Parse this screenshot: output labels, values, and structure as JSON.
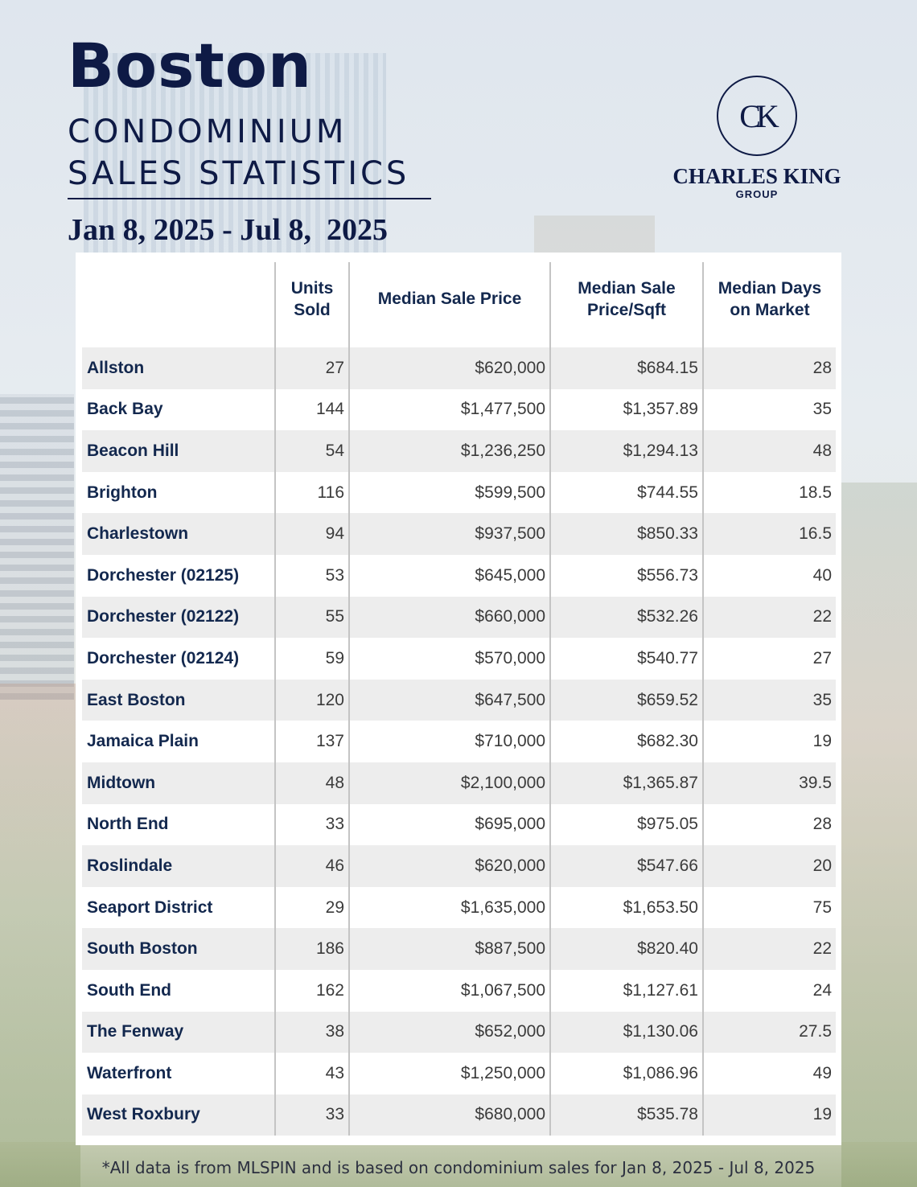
{
  "header": {
    "title": "Boston",
    "subtitle_line1": "CONDOMINIUM",
    "subtitle_line2": "SALES STATISTICS",
    "date_range": "Jan 8, 2025 - Jul 8,  2025"
  },
  "logo": {
    "mark": "CK",
    "name": "CHARLES KING",
    "sub": "GROUP"
  },
  "table": {
    "headers": {
      "units": "Units\nSold",
      "price": "Median Sale Price",
      "sqft": "Median Sale\nPrice/Sqft",
      "days": "Median Days\non Market"
    },
    "rows": [
      {
        "area": "Allston",
        "units": "27",
        "price": "$620,000",
        "sqft": "$684.15",
        "days": "28"
      },
      {
        "area": "Back Bay",
        "units": "144",
        "price": "$1,477,500",
        "sqft": "$1,357.89",
        "days": "35"
      },
      {
        "area": "Beacon Hill",
        "units": "54",
        "price": "$1,236,250",
        "sqft": "$1,294.13",
        "days": "48"
      },
      {
        "area": "Brighton",
        "units": "116",
        "price": "$599,500",
        "sqft": "$744.55",
        "days": "18.5"
      },
      {
        "area": "Charlestown",
        "units": "94",
        "price": "$937,500",
        "sqft": "$850.33",
        "days": "16.5"
      },
      {
        "area": "Dorchester (02125)",
        "units": "53",
        "price": "$645,000",
        "sqft": "$556.73",
        "days": "40"
      },
      {
        "area": "Dorchester (02122)",
        "units": "55",
        "price": "$660,000",
        "sqft": "$532.26",
        "days": "22"
      },
      {
        "area": "Dorchester (02124)",
        "units": "59",
        "price": "$570,000",
        "sqft": "$540.77",
        "days": "27"
      },
      {
        "area": "East Boston",
        "units": "120",
        "price": "$647,500",
        "sqft": "$659.52",
        "days": "35"
      },
      {
        "area": "Jamaica Plain",
        "units": "137",
        "price": "$710,000",
        "sqft": "$682.30",
        "days": "19"
      },
      {
        "area": "Midtown",
        "units": "48",
        "price": "$2,100,000",
        "sqft": "$1,365.87",
        "days": "39.5"
      },
      {
        "area": "North End",
        "units": "33",
        "price": "$695,000",
        "sqft": "$975.05",
        "days": "28"
      },
      {
        "area": "Roslindale",
        "units": "46",
        "price": "$620,000",
        "sqft": "$547.66",
        "days": "20"
      },
      {
        "area": "Seaport District",
        "units": "29",
        "price": "$1,635,000",
        "sqft": "$1,653.50",
        "days": "75"
      },
      {
        "area": "South Boston",
        "units": "186",
        "price": "$887,500",
        "sqft": "$820.40",
        "days": "22"
      },
      {
        "area": "South End",
        "units": "162",
        "price": "$1,067,500",
        "sqft": "$1,127.61",
        "days": "24"
      },
      {
        "area": "The Fenway",
        "units": "38",
        "price": "$652,000",
        "sqft": "$1,130.06",
        "days": "27.5"
      },
      {
        "area": "Waterfront",
        "units": "43",
        "price": "$1,250,000",
        "sqft": "$1,086.96",
        "days": "49"
      },
      {
        "area": "West Roxbury",
        "units": "33",
        "price": "$680,000",
        "sqft": "$535.78",
        "days": "19"
      }
    ]
  },
  "footnote": "*All data is from MLSPIN and is based on condominium sales for Jan 8, 2025 - Jul 8, 2025",
  "colors": {
    "navy": "#0e1a45",
    "row_stripe": "#ededed",
    "body_text": "#3b3b3b"
  }
}
